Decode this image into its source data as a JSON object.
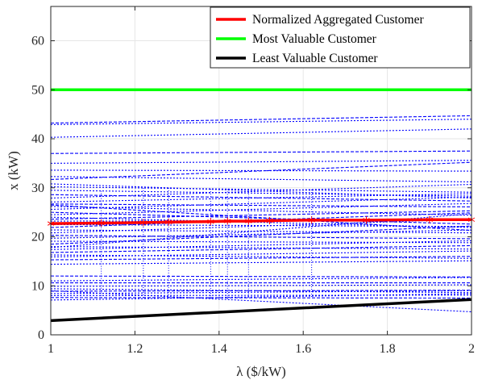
{
  "chart_data": {
    "type": "line",
    "xlabel": "λ ($/kW)",
    "ylabel": "x (kW)",
    "xlim": [
      1,
      2
    ],
    "ylim": [
      0,
      67
    ],
    "x_ticks": [
      "1",
      "1.2",
      "1.4",
      "1.6",
      "1.8",
      "2"
    ],
    "y_ticks": [
      "0",
      "10",
      "20",
      "30",
      "40",
      "50",
      "60"
    ],
    "grid": true,
    "legend_position": "top-right",
    "legend": [
      {
        "label": "Normalized Aggregated Customer",
        "color": "#ff0000",
        "style": "solid"
      },
      {
        "label": "Most Valuable Customer",
        "color": "#00ff00",
        "style": "solid"
      },
      {
        "label": "Least Valuable Customer",
        "color": "#000000",
        "style": "solid"
      }
    ],
    "highlight_series": [
      {
        "name": "Normalized Aggregated Customer",
        "color": "#ff0000",
        "marker": "asterisk",
        "x": [
          1,
          1.12,
          1.22,
          1.28,
          1.38,
          1.42,
          1.47,
          1.52,
          1.62,
          1.75,
          1.9,
          2
        ],
        "y": [
          22.7,
          22.8,
          22.9,
          23.0,
          23.1,
          23.2,
          23.2,
          23.3,
          23.4,
          23.4,
          23.5,
          23.5
        ]
      },
      {
        "name": "Most Valuable Customer",
        "color": "#00ff00",
        "x": [
          1,
          2
        ],
        "y": [
          50,
          50
        ]
      },
      {
        "name": "Least Valuable Customer",
        "color": "#000000",
        "x": [
          1,
          2
        ],
        "y": [
          2.9,
          7.2
        ]
      }
    ],
    "customer_lines": {
      "color": "#0000ff",
      "x": [
        1,
        2
      ],
      "series": [
        [
          43.2,
          44.7
        ],
        [
          42.9,
          44.0
        ],
        [
          40.3,
          42.0
        ],
        [
          37.0,
          37.5
        ],
        [
          33.6,
          33.4
        ],
        [
          32.3,
          31.2
        ],
        [
          31.7,
          35.2
        ],
        [
          30.2,
          29.1
        ],
        [
          29.5,
          28.3
        ],
        [
          28.6,
          27.3
        ],
        [
          27.9,
          30.7
        ],
        [
          27.1,
          28.8
        ],
        [
          26.7,
          26.1
        ],
        [
          26.2,
          24.4
        ],
        [
          25.6,
          28.1
        ],
        [
          25.0,
          22.6
        ],
        [
          24.5,
          26.8
        ],
        [
          24.0,
          21.9
        ],
        [
          23.6,
          25.3
        ],
        [
          23.2,
          23.4
        ],
        [
          22.5,
          22.1
        ],
        [
          21.9,
          24.9
        ],
        [
          21.4,
          20.8
        ],
        [
          20.8,
          23.6
        ],
        [
          20.3,
          19.6
        ],
        [
          19.7,
          21.4
        ],
        [
          19.1,
          18.8
        ],
        [
          18.5,
          22.2
        ],
        [
          18.0,
          17.5
        ],
        [
          17.4,
          19.2
        ],
        [
          16.8,
          18.2
        ],
        [
          16.3,
          15.6
        ],
        [
          15.9,
          17.1
        ],
        [
          15.3,
          16.0
        ],
        [
          14.4,
          15.1
        ],
        [
          11.0,
          11.7
        ],
        [
          10.6,
          10.6
        ],
        [
          9.9,
          10.2
        ],
        [
          9.4,
          8.6
        ],
        [
          8.9,
          9.1
        ],
        [
          8.4,
          9.0
        ],
        [
          8.0,
          8.1
        ],
        [
          7.6,
          7.5
        ],
        [
          7.1,
          8.4
        ],
        [
          9.0,
          4.7
        ],
        [
          26.5,
          21.3
        ],
        [
          17.8,
          24.7
        ],
        [
          30.8,
          27.9
        ],
        [
          12.0,
          11.8
        ],
        [
          35.0,
          35.6
        ]
      ]
    }
  }
}
